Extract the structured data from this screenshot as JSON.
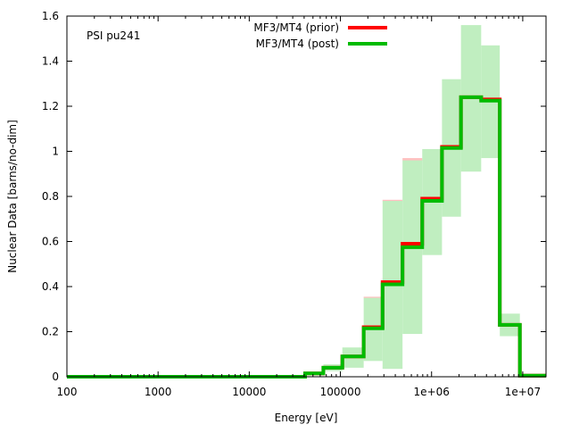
{
  "chart_data": {
    "type": "line",
    "subtype": "step-histogram-with-uncertainty-band",
    "annotation": "PSI pu241",
    "xlabel": "Energy [eV]",
    "ylabel": "Nuclear Data [barns/no-dim]",
    "xscale": "log",
    "xlim": [
      100,
      18000000
    ],
    "ylim": [
      0,
      1.6
    ],
    "xticks": [
      {
        "v": 100,
        "label": "100"
      },
      {
        "v": 1000,
        "label": "1000"
      },
      {
        "v": 10000,
        "label": "10000"
      },
      {
        "v": 100000,
        "label": "100000"
      },
      {
        "v": 1000000,
        "label": "1e+06"
      },
      {
        "v": 10000000,
        "label": "1e+07"
      }
    ],
    "yticks": [
      {
        "v": 0,
        "label": "0"
      },
      {
        "v": 0.2,
        "label": "0.2"
      },
      {
        "v": 0.4,
        "label": "0.4"
      },
      {
        "v": 0.6,
        "label": "0.6"
      },
      {
        "v": 0.8,
        "label": "0.8"
      },
      {
        "v": 1,
        "label": "1"
      },
      {
        "v": 1.2,
        "label": "1.2"
      },
      {
        "v": 1.4,
        "label": "1.4"
      },
      {
        "v": 1.6,
        "label": "1.6"
      }
    ],
    "legend_position": "top-center",
    "bin_edges": [
      100,
      41000,
      65000,
      105000,
      180000,
      290000,
      480000,
      790000,
      1300000,
      2100000,
      3500000,
      5600000,
      9300000,
      18000000
    ],
    "series": [
      {
        "name": "MF3/MT4 (prior)",
        "color": "#ff0000",
        "band_color": "#ffc0c0",
        "values": [
          0,
          0.015,
          0.04,
          0.09,
          0.22,
          0.42,
          0.59,
          0.79,
          1.02,
          1.24,
          1.23,
          0.23,
          0.005
        ],
        "band_upper": [
          0,
          0.015,
          0.055,
          0.13,
          0.355,
          0.785,
          0.97,
          1.01,
          1.32,
          1.56,
          1.47,
          0.28,
          0.005
        ]
      },
      {
        "name": "MF3/MT4 (post)",
        "color": "#00bb00",
        "band_color": "#c0eec0",
        "values": [
          0,
          0.015,
          0.04,
          0.09,
          0.215,
          0.41,
          0.575,
          0.78,
          1.015,
          1.24,
          1.225,
          0.23,
          0.005
        ],
        "band_lower": [
          0,
          0.01,
          0.025,
          0.04,
          0.07,
          0.035,
          0.19,
          0.54,
          0.71,
          0.91,
          0.97,
          0.18,
          0.005
        ],
        "band_upper": [
          0,
          0.015,
          0.055,
          0.13,
          0.35,
          0.78,
          0.96,
          1.01,
          1.32,
          1.56,
          1.47,
          0.28,
          0.005
        ]
      }
    ]
  }
}
